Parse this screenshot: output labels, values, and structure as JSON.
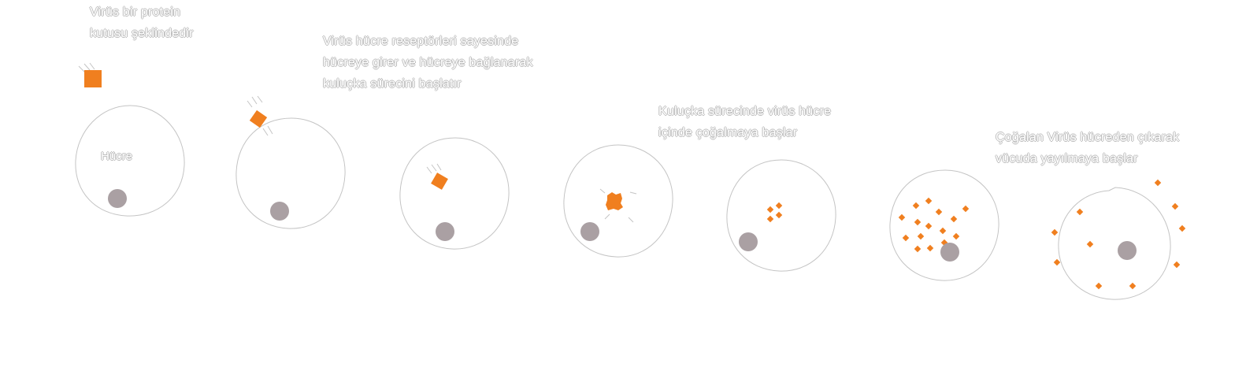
{
  "captions": [
    "Virüs bir protein\nkutusu şeklindedir",
    "Virüs hücre reseptörleri sayesinde\nhücreye girer ve hücreye bağlanarak\nkuluçka sürecini başlatır",
    "Kuluçka sürecinde virüs hücre\niçinde çoğalmaya başlar",
    "Çoğalan Virüs hücreden çıkarak\nvücuda yayılmaya başlar"
  ],
  "cell_label": "Hücre",
  "colors": {
    "virus": "#f07f1f",
    "nucleus": "#aaa0a3",
    "membrane": "#c4c4c4",
    "text_outline": "#bdbdbd"
  },
  "icons": {
    "virus": "orange-square",
    "nucleus": "grey-circle",
    "motion": "motion-lines"
  }
}
